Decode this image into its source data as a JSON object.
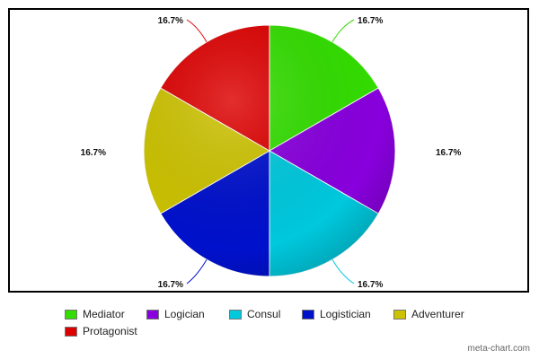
{
  "chart_data": {
    "type": "pie",
    "title": "",
    "slices": [
      {
        "label": "Mediator",
        "value": 16.7,
        "display": "16.7%",
        "color": "#33dd00"
      },
      {
        "label": "Logician",
        "value": 16.7,
        "display": "16.7%",
        "color": "#8800dd"
      },
      {
        "label": "Consul",
        "value": 16.7,
        "display": "16.7%",
        "color": "#00c8dd"
      },
      {
        "label": "Logistician",
        "value": 16.7,
        "display": "16.7%",
        "color": "#0011cc"
      },
      {
        "label": "Adventurer",
        "value": 16.7,
        "display": "16.7%",
        "color": "#ccc200"
      },
      {
        "label": "Protagonist",
        "value": 16.7,
        "display": "16.7%",
        "color": "#dd0000"
      }
    ],
    "legend_position": "bottom"
  },
  "watermark": "meta-chart.com"
}
